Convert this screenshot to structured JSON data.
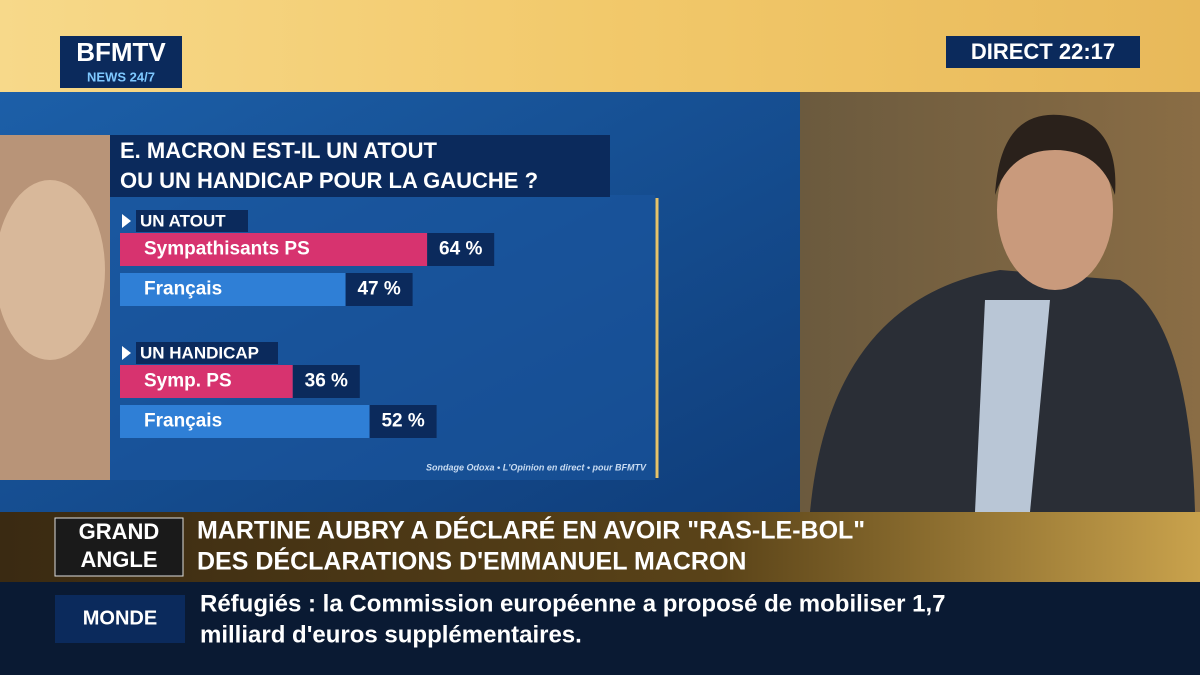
{
  "header": {
    "logo": "BFMTV",
    "logo_sub": "NEWS 24/7",
    "live": "DIRECT 22:17"
  },
  "chart_data": {
    "type": "bar",
    "title": [
      "E. MACRON EST-IL UN ATOUT",
      "OU UN HANDICAP POUR LA GAUCHE ?"
    ],
    "groups": [
      {
        "name": "UN ATOUT",
        "categories": [
          "Sympathisants PS",
          "Français"
        ],
        "values": [
          64,
          47
        ],
        "value_labels": [
          "64 %",
          "47 %"
        ],
        "colors": [
          "#d7336f",
          "#2f7fd6"
        ]
      },
      {
        "name": "UN HANDICAP",
        "categories": [
          "Symp. PS",
          "Français"
        ],
        "values": [
          36,
          52
        ],
        "value_labels": [
          "36 %",
          "52 %"
        ],
        "colors": [
          "#d7336f",
          "#2f7fd6"
        ]
      }
    ],
    "source": "Sondage Odoxa • L'Opinion en direct • pour BFMTV"
  },
  "banner": {
    "tag": [
      "GRAND",
      "ANGLE"
    ],
    "headline": [
      "MARTINE AUBRY A DÉCLARÉ EN AVOIR \"RAS-LE-BOL\"",
      "DES DÉCLARATIONS D'EMMANUEL MACRON"
    ]
  },
  "ticker": {
    "tag": "MONDE",
    "text": [
      "Réfugiés : la Commission européenne a proposé de mobiliser 1,7",
      "milliard d'euros supplémentaires."
    ]
  }
}
